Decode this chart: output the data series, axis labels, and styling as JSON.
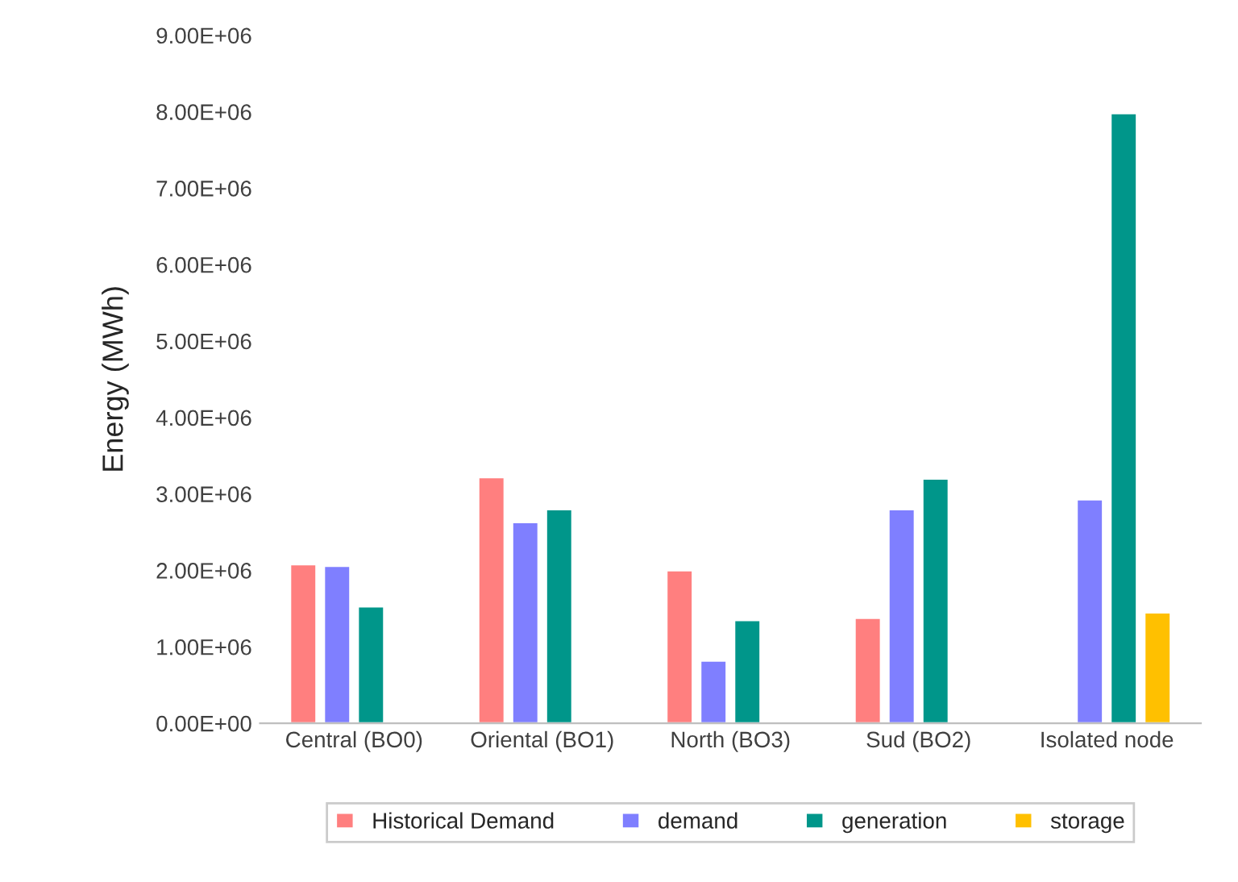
{
  "chart_data": {
    "type": "bar",
    "ylabel": "Energy (MWh)",
    "categories": [
      "Central (BO0)",
      "Oriental (BO1)",
      "North (BO3)",
      "Sud (BO2)",
      "Isolated node"
    ],
    "series": [
      {
        "name": "Historical Demand",
        "color": "#ff7f7f",
        "values": [
          2080000,
          3220000,
          2000000,
          1380000,
          null
        ]
      },
      {
        "name": "demand",
        "color": "#7f7fff",
        "values": [
          2060000,
          2630000,
          820000,
          2800000,
          2930000
        ]
      },
      {
        "name": "generation",
        "color": "#00968a",
        "values": [
          1530000,
          2800000,
          1350000,
          3200000,
          7980000
        ]
      },
      {
        "name": "storage",
        "color": "#ffc000",
        "values": [
          null,
          null,
          null,
          20000,
          1450000
        ]
      }
    ],
    "ylim": [
      0,
      9000000
    ],
    "yticks": [
      {
        "value": 0,
        "label": "0.00E+00"
      },
      {
        "value": 1000000,
        "label": "1.00E+06"
      },
      {
        "value": 2000000,
        "label": "2.00E+06"
      },
      {
        "value": 3000000,
        "label": "3.00E+06"
      },
      {
        "value": 4000000,
        "label": "4.00E+06"
      },
      {
        "value": 5000000,
        "label": "5.00E+06"
      },
      {
        "value": 6000000,
        "label": "6.00E+06"
      },
      {
        "value": 7000000,
        "label": "7.00E+06"
      },
      {
        "value": 8000000,
        "label": "8.00E+06"
      },
      {
        "value": 9000000,
        "label": "9.00E+06"
      }
    ],
    "legend": "bottom",
    "grid": false
  }
}
